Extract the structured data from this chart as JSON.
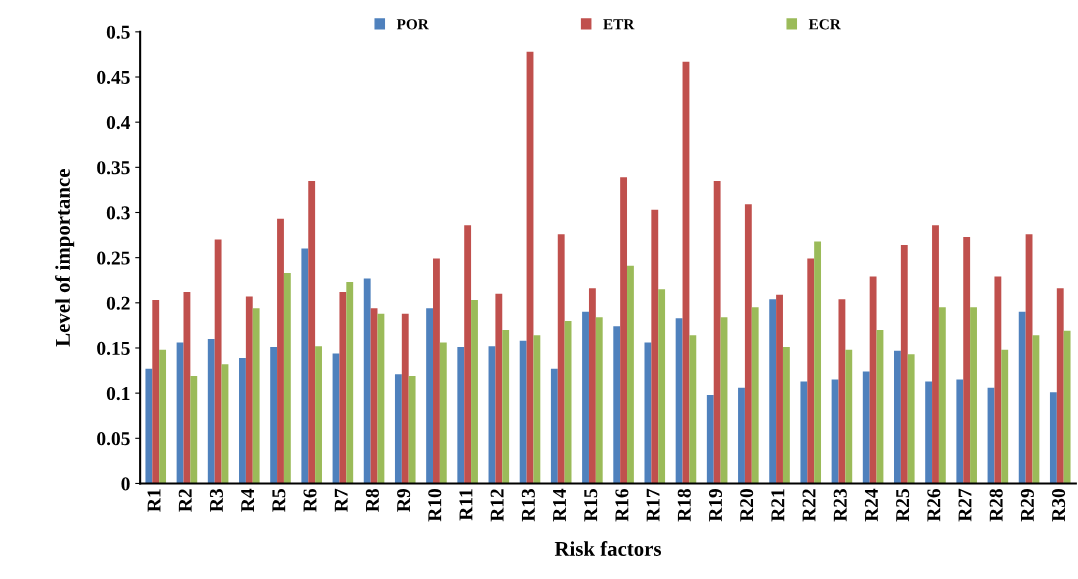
{
  "chart_data": {
    "type": "bar",
    "xlabel": "Risk factors",
    "ylabel": "Level of importance",
    "categories": [
      "R1",
      "R2",
      "R3",
      "R4",
      "R5",
      "R6",
      "R7",
      "R8",
      "R9",
      "R10",
      "R11",
      "R12",
      "R13",
      "R14",
      "R15",
      "R16",
      "R17",
      "R18",
      "R19",
      "R20",
      "R21",
      "R22",
      "R23",
      "R24",
      "R25",
      "R26",
      "R27",
      "R28",
      "R29",
      "R30"
    ],
    "series": [
      {
        "name": "POR",
        "color": "#4f81bd",
        "values": [
          0.127,
          0.156,
          0.16,
          0.139,
          0.151,
          0.26,
          0.144,
          0.227,
          0.121,
          0.194,
          0.151,
          0.152,
          0.158,
          0.127,
          0.19,
          0.174,
          0.156,
          0.183,
          0.098,
          0.106,
          0.204,
          0.113,
          0.115,
          0.124,
          0.147,
          0.113,
          0.115,
          0.106,
          0.19,
          0.101
        ]
      },
      {
        "name": "ETR",
        "color": "#c0504d",
        "values": [
          0.203,
          0.212,
          0.27,
          0.207,
          0.293,
          0.335,
          0.212,
          0.194,
          0.188,
          0.249,
          0.286,
          0.21,
          0.478,
          0.276,
          0.216,
          0.339,
          0.303,
          0.467,
          0.335,
          0.309,
          0.209,
          0.249,
          0.204,
          0.229,
          0.264,
          0.286,
          0.273,
          0.229,
          0.276,
          0.216
        ]
      },
      {
        "name": "ECR",
        "color": "#9bbb59",
        "values": [
          0.148,
          0.119,
          0.132,
          0.194,
          0.233,
          0.152,
          0.223,
          0.188,
          0.119,
          0.156,
          0.203,
          0.17,
          0.164,
          0.18,
          0.184,
          0.241,
          0.215,
          0.164,
          0.184,
          0.195,
          0.151,
          0.268,
          0.148,
          0.17,
          0.143,
          0.195,
          0.195,
          0.148,
          0.164,
          0.169
        ]
      }
    ],
    "ylim": [
      0,
      0.5
    ],
    "yticks": [
      0,
      0.05,
      0.1,
      0.15,
      0.2,
      0.25,
      0.3,
      0.35,
      0.4,
      0.45,
      0.5
    ],
    "grid": false,
    "legend": "top"
  }
}
